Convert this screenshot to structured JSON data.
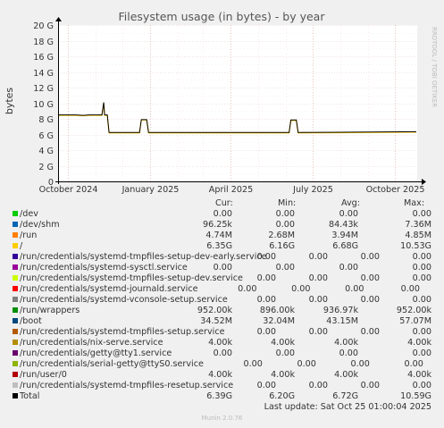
{
  "window": {
    "title": "Filesystem usage (in bytes) - by year"
  },
  "watermark": "RRDTOOL / TOBI OETIKER",
  "footer": {
    "last_update": "Last update: Sat Oct 25 01:00:04 2025",
    "version": "Munin 2.0.76"
  },
  "legend_headers": {
    "cur": "Cur:",
    "min": "Min:",
    "avg": "Avg:",
    "max": "Max:"
  },
  "legend": [
    {
      "name": "/dev",
      "color": "#00cc00",
      "cur": "0.00",
      "min": "0.00",
      "avg": "0.00",
      "max": "0.00"
    },
    {
      "name": "/dev/shm",
      "color": "#0066b3",
      "cur": "96.25k",
      "min": "0.00",
      "avg": "84.43k",
      "max": "7.36M"
    },
    {
      "name": "/run",
      "color": "#ff8000",
      "cur": "4.74M",
      "min": "2.68M",
      "avg": "3.94M",
      "max": "4.85M"
    },
    {
      "name": "/",
      "color": "#ffcc00",
      "cur": "6.35G",
      "min": "6.16G",
      "avg": "6.68G",
      "max": "10.53G"
    },
    {
      "name": "/run/credentials/systemd-tmpfiles-setup-dev-early.service",
      "color": "#330099",
      "cur": "0.00",
      "min": "0.00",
      "avg": "0.00",
      "max": "0.00"
    },
    {
      "name": "/run/credentials/systemd-sysctl.service",
      "color": "#990099",
      "cur": "0.00",
      "min": "0.00",
      "avg": "0.00",
      "max": "0.00"
    },
    {
      "name": "/run/credentials/systemd-tmpfiles-setup-dev.service",
      "color": "#ccff00",
      "cur": "0.00",
      "min": "0.00",
      "avg": "0.00",
      "max": "0.00"
    },
    {
      "name": "/run/credentials/systemd-journald.service",
      "color": "#ff0000",
      "cur": "0.00",
      "min": "0.00",
      "avg": "0.00",
      "max": "0.00"
    },
    {
      "name": "/run/credentials/systemd-vconsole-setup.service",
      "color": "#808080",
      "cur": "0.00",
      "min": "0.00",
      "avg": "0.00",
      "max": "0.00"
    },
    {
      "name": "/run/wrappers",
      "color": "#008f00",
      "cur": "952.00k",
      "min": "896.00k",
      "avg": "936.97k",
      "max": "952.00k"
    },
    {
      "name": "/boot",
      "color": "#00487d",
      "cur": "34.52M",
      "min": "32.04M",
      "avg": "43.15M",
      "max": "57.07M"
    },
    {
      "name": "/run/credentials/systemd-tmpfiles-setup.service",
      "color": "#b35a00",
      "cur": "0.00",
      "min": "0.00",
      "avg": "0.00",
      "max": "0.00"
    },
    {
      "name": "/run/credentials/nix-serve.service",
      "color": "#b38f00",
      "cur": "4.00k",
      "min": "4.00k",
      "avg": "4.00k",
      "max": "4.00k"
    },
    {
      "name": "/run/credentials/getty@tty1.service",
      "color": "#6b006b",
      "cur": "0.00",
      "min": "0.00",
      "avg": "0.00",
      "max": "0.00"
    },
    {
      "name": "/run/credentials/serial-getty@ttyS0.service",
      "color": "#8fb300",
      "cur": "0.00",
      "min": "0.00",
      "avg": "0.00",
      "max": "0.00"
    },
    {
      "name": "/run/user/0",
      "color": "#b30000",
      "cur": "4.00k",
      "min": "4.00k",
      "avg": "4.00k",
      "max": "4.00k"
    },
    {
      "name": "/run/credentials/systemd-tmpfiles-resetup.service",
      "color": "#bebebe",
      "cur": "0.00",
      "min": "0.00",
      "avg": "0.00",
      "max": "0.00"
    },
    {
      "name": "Total",
      "color": "#000000",
      "cur": "6.39G",
      "min": "6.20G",
      "avg": "6.72G",
      "max": "10.59G"
    }
  ],
  "chart_data": {
    "type": "line",
    "title": "Filesystem usage (in bytes) - by year",
    "ylabel": "bytes",
    "ylim": [
      0,
      20
    ],
    "yunit": "G",
    "yticks": [
      "0",
      "2 G",
      "4 G",
      "6 G",
      "8 G",
      "10 G",
      "12 G",
      "14 G",
      "16 G",
      "18 G",
      "20 G"
    ],
    "xlim": [
      "2024-09-20",
      "2025-10-26"
    ],
    "xticks": [
      {
        "date": "2024-10-01",
        "label": "October 2024"
      },
      {
        "date": "2025-01-01",
        "label": "January 2025"
      },
      {
        "date": "2025-04-01",
        "label": "April 2025"
      },
      {
        "date": "2025-07-01",
        "label": "July 2025"
      },
      {
        "date": "2025-10-01",
        "label": "October 2025"
      }
    ],
    "grid": true,
    "series": [
      {
        "name": "/",
        "color": "#ffcc00",
        "points": [
          [
            "2024-09-20",
            8.45
          ],
          [
            "2024-10-10",
            8.45
          ],
          [
            "2024-10-18",
            8.4
          ],
          [
            "2024-10-25",
            8.45
          ],
          [
            "2024-11-08",
            8.45
          ],
          [
            "2024-11-10",
            10.05
          ],
          [
            "2024-11-11",
            8.45
          ],
          [
            "2024-11-14",
            8.45
          ],
          [
            "2024-11-16",
            6.2
          ],
          [
            "2024-12-20",
            6.2
          ],
          [
            "2024-12-22",
            7.85
          ],
          [
            "2024-12-28",
            7.85
          ],
          [
            "2024-12-30",
            6.2
          ],
          [
            "2025-06-05",
            6.2
          ],
          [
            "2025-06-07",
            7.8
          ],
          [
            "2025-06-13",
            7.8
          ],
          [
            "2025-06-15",
            6.2
          ],
          [
            "2025-10-25",
            6.3
          ]
        ]
      },
      {
        "name": "Total",
        "color": "#000000",
        "points": [
          [
            "2024-09-20",
            8.5
          ],
          [
            "2024-10-10",
            8.5
          ],
          [
            "2024-10-18",
            8.45
          ],
          [
            "2024-10-25",
            8.5
          ],
          [
            "2024-11-08",
            8.5
          ],
          [
            "2024-11-10",
            10.1
          ],
          [
            "2024-11-11",
            8.5
          ],
          [
            "2024-11-14",
            8.5
          ],
          [
            "2024-11-16",
            6.25
          ],
          [
            "2024-12-20",
            6.25
          ],
          [
            "2024-12-22",
            7.9
          ],
          [
            "2024-12-28",
            7.9
          ],
          [
            "2024-12-30",
            6.25
          ],
          [
            "2025-06-05",
            6.25
          ],
          [
            "2025-06-07",
            7.85
          ],
          [
            "2025-06-13",
            7.85
          ],
          [
            "2025-06-15",
            6.25
          ],
          [
            "2025-10-25",
            6.35
          ]
        ]
      }
    ]
  }
}
